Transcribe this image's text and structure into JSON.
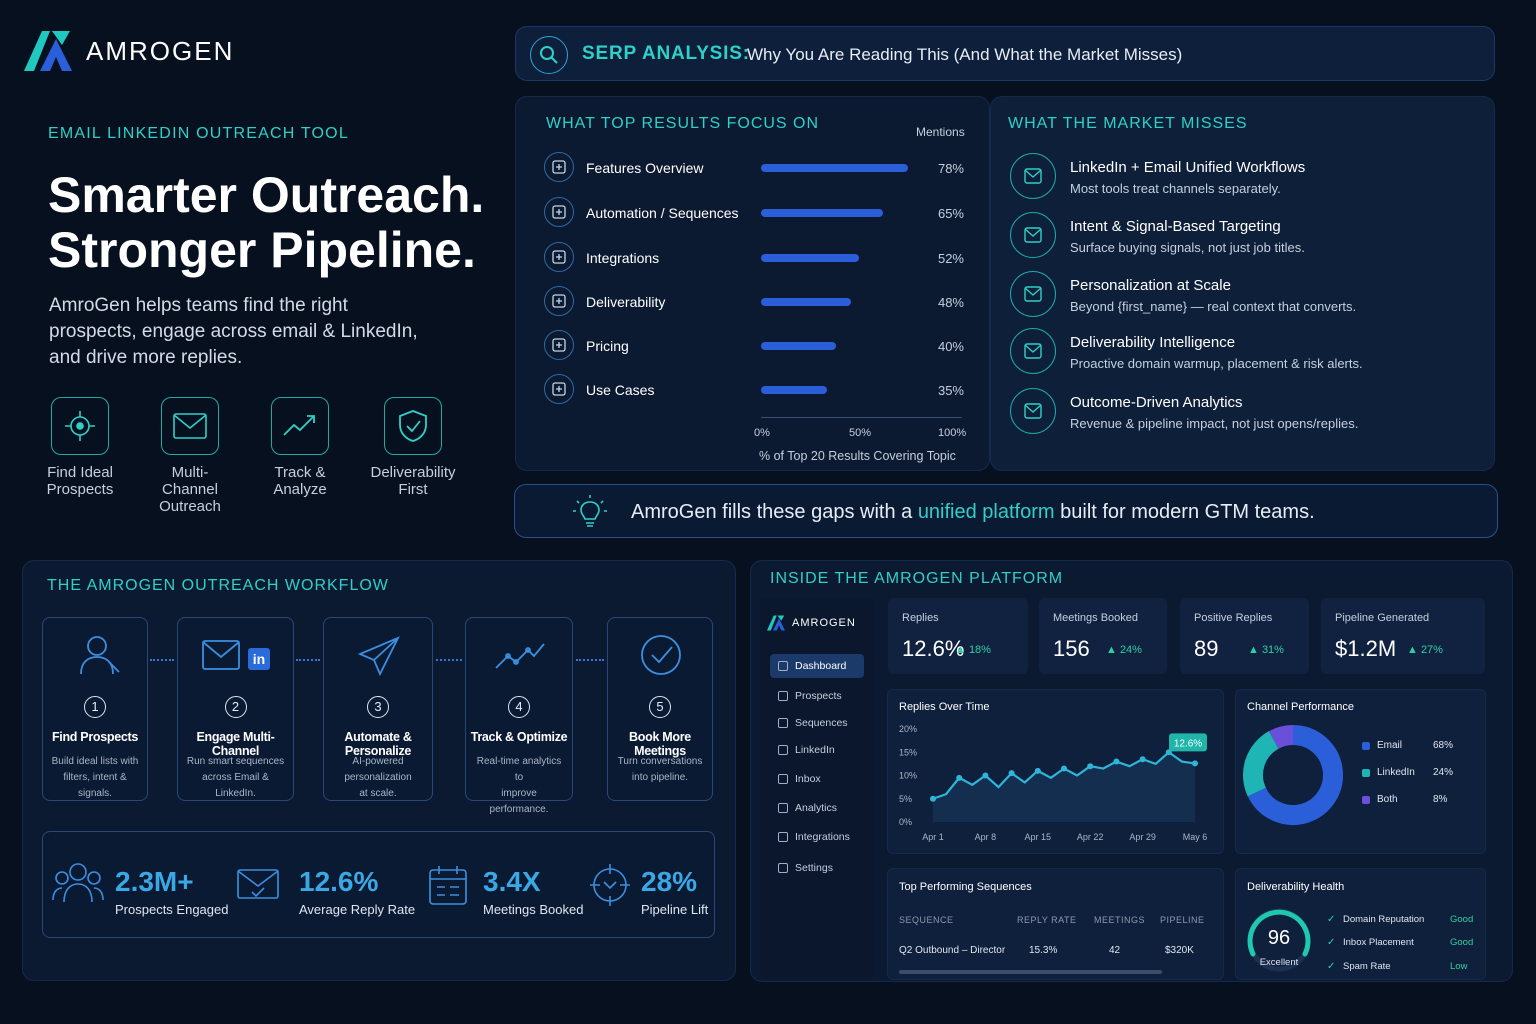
{
  "brand": {
    "name": "AMROGEN"
  },
  "hero": {
    "eyebrow": "EMAIL LINKEDIN OUTREACH TOOL",
    "headline_1": "Smarter Outreach.",
    "headline_2": "Stronger Pipeline.",
    "body_1": "AmroGen helps teams find the right",
    "body_2": "prospects, engage across email & LinkedIn,",
    "body_3": "and drive more replies.",
    "features": [
      {
        "l1": "Find Ideal",
        "l2": "Prospects",
        "icon": "target-icon"
      },
      {
        "l1": "Multi-Channel",
        "l2": "Outreach",
        "icon": "envelope-icon"
      },
      {
        "l1": "Track &",
        "l2": "Analyze",
        "icon": "trend-icon"
      },
      {
        "l1": "Deliverability",
        "l2": "First",
        "icon": "shield-check-icon"
      }
    ]
  },
  "serp": {
    "label": "SERP ANALYSIS:",
    "text": "Why You Are Reading This (And What the Market Misses)"
  },
  "focus": {
    "title": "WHAT TOP RESULTS FOCUS ON",
    "mentions": "Mentions",
    "rows": [
      {
        "label": "Features Overview",
        "value": 78,
        "pct": "78%"
      },
      {
        "label": "Automation / Sequences",
        "value": 65,
        "pct": "65%"
      },
      {
        "label": "Integrations",
        "value": 52,
        "pct": "52%"
      },
      {
        "label": "Deliverability",
        "value": 48,
        "pct": "48%"
      },
      {
        "label": "Pricing",
        "value": 40,
        "pct": "40%"
      },
      {
        "label": "Use Cases",
        "value": 35,
        "pct": "35%"
      }
    ],
    "ticks": [
      "0%",
      "50%",
      "100%"
    ],
    "axis_label": "% of Top 20 Results Covering Topic"
  },
  "misses": {
    "title": "WHAT THE MARKET MISSES",
    "items": [
      {
        "title": "LinkedIn + Email Unified Workflows",
        "desc": "Most tools treat channels separately."
      },
      {
        "title": "Intent & Signal-Based Targeting",
        "desc": "Surface buying signals, not just job titles."
      },
      {
        "title": "Personalization at Scale",
        "desc": "Beyond {first_name} — real context that converts."
      },
      {
        "title": "Deliverability Intelligence",
        "desc": "Proactive domain warmup, placement & risk alerts."
      },
      {
        "title": "Outcome-Driven Analytics",
        "desc": "Revenue & pipeline impact, not just opens/replies."
      }
    ]
  },
  "banner": {
    "pre": "AmroGen fills these gaps with a",
    "highlight": "unified platform",
    "post": "built for modern GTM teams."
  },
  "workflow": {
    "title": "THE AMROGEN OUTREACH WORKFLOW",
    "steps": [
      {
        "num": "1",
        "title": "Find Prospects",
        "d1": "Build ideal lists with",
        "d2": "filters, intent & signals."
      },
      {
        "num": "2",
        "title": "Engage Multi-Channel",
        "d1": "Run smart sequences",
        "d2": "across Email & LinkedIn."
      },
      {
        "num": "3",
        "title": "Automate & Personalize",
        "d1": "AI-powered personalization",
        "d2": "at scale."
      },
      {
        "num": "4",
        "title": "Track & Optimize",
        "d1": "Real-time analytics to",
        "d2": "improve performance."
      },
      {
        "num": "5",
        "title": "Book More Meetings",
        "d1": "Turn conversations",
        "d2": "into pipeline."
      }
    ],
    "stats": [
      {
        "value": "2.3M+",
        "label": "Prospects Engaged"
      },
      {
        "value": "12.6%",
        "label": "Average Reply Rate"
      },
      {
        "value": "3.4X",
        "label": "Meetings Booked"
      },
      {
        "value": "28%",
        "label": "Pipeline Lift"
      }
    ]
  },
  "platform": {
    "title": "INSIDE THE AMROGEN PLATFORM",
    "nav": [
      "Dashboard",
      "Prospects",
      "Sequences",
      "LinkedIn",
      "Inbox",
      "Analytics",
      "Integrations",
      "Settings"
    ],
    "kpis": [
      {
        "label": "Replies",
        "value": "12.6%",
        "change": "▲ 18%"
      },
      {
        "label": "Meetings Booked",
        "value": "156",
        "change": "▲ 24%"
      },
      {
        "label": "Positive Replies",
        "value": "89",
        "change": "▲ 31%"
      },
      {
        "label": "Pipeline Generated",
        "value": "$1.2M",
        "change": "▲ 27%"
      }
    ],
    "replies_chart": {
      "title": "Replies Over Time",
      "y_ticks": [
        "20%",
        "15%",
        "10%",
        "5%",
        "0%"
      ],
      "x_ticks": [
        "Apr 1",
        "Apr 8",
        "Apr 15",
        "Apr 22",
        "Apr 29",
        "May 6"
      ],
      "callout": "12.6%"
    },
    "channel": {
      "title": "Channel Performance",
      "items": [
        {
          "name": "Email",
          "pct": "68%",
          "value": 68,
          "color": "#2b5fd9"
        },
        {
          "name": "LinkedIn",
          "pct": "24%",
          "value": 24,
          "color": "#1fb5b5"
        },
        {
          "name": "Both",
          "pct": "8%",
          "value": 8,
          "color": "#6a4fd8"
        }
      ]
    },
    "sequences": {
      "title": "Top Performing Sequences",
      "headers": [
        "SEQUENCE",
        "REPLY RATE",
        "MEETINGS",
        "PIPELINE"
      ],
      "rows": [
        [
          "Q2 Outbound – Director",
          "15.3%",
          "42",
          "$320K"
        ]
      ]
    },
    "health": {
      "title": "Deliverability Health",
      "score": "96",
      "score_label": "Excellent",
      "items": [
        {
          "name": "Domain Reputation",
          "status": "Good"
        },
        {
          "name": "Inbox Placement",
          "status": "Good"
        },
        {
          "name": "Spam Rate",
          "status": "Low"
        }
      ]
    }
  },
  "chart_data": {
    "type": "line",
    "title": "Replies Over Time",
    "x_ticks": [
      "Apr 1",
      "Apr 8",
      "Apr 15",
      "Apr 22",
      "Apr 29",
      "May 6"
    ],
    "ylim": [
      0,
      20
    ],
    "series": [
      {
        "values": [
          5.0,
          6.0,
          9.5,
          8.0,
          10.0,
          7.5,
          10.5,
          8.5,
          11.0,
          9.5,
          11.5,
          10.0,
          12.0,
          11.5,
          13.0,
          12.0,
          13.5,
          12.5,
          15.0,
          13.0,
          12.6
        ]
      }
    ]
  }
}
